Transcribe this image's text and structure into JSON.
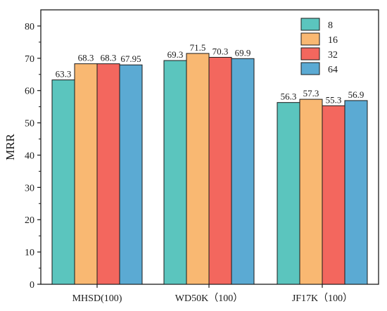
{
  "chart_data": {
    "type": "bar",
    "ylabel": "MRR",
    "ylim": [
      0,
      85
    ],
    "yticks": [
      0,
      10,
      20,
      30,
      40,
      50,
      60,
      70,
      80
    ],
    "categories": [
      "MHSD(100)",
      "WD50K（100）",
      "JF17K（100）"
    ],
    "series": [
      {
        "name": "8",
        "color": "#5BC5BE",
        "values": [
          63.3,
          69.3,
          56.3
        ],
        "labels": [
          "63.3",
          "69.3",
          "56.3"
        ]
      },
      {
        "name": "16",
        "color": "#F9B872",
        "values": [
          68.3,
          71.5,
          57.3
        ],
        "labels": [
          "68.3",
          "71.5",
          "57.3"
        ]
      },
      {
        "name": "32",
        "color": "#F3675E",
        "values": [
          68.3,
          70.3,
          55.3
        ],
        "labels": [
          "68.3",
          "70.3",
          "55.3"
        ]
      },
      {
        "name": "64",
        "color": "#5BAAD3",
        "values": [
          67.95,
          69.9,
          56.9
        ],
        "labels": [
          "67.95",
          "69.9",
          "56.9"
        ]
      }
    ],
    "legend_position": "top-right",
    "grid": false
  }
}
